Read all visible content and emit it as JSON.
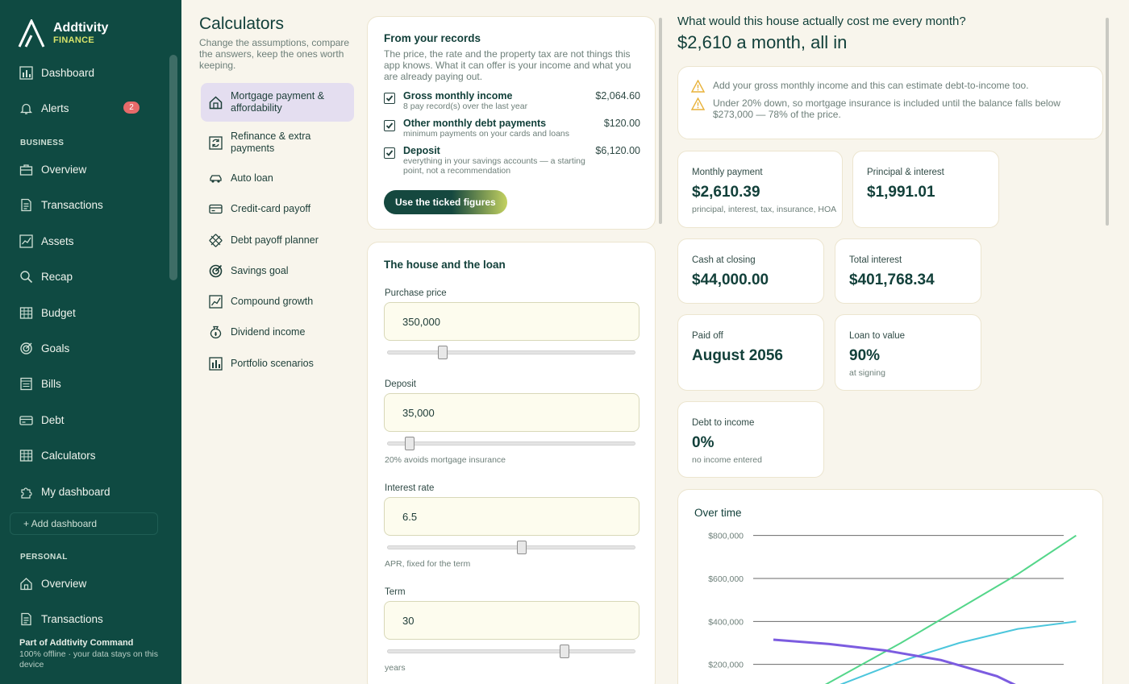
{
  "brand": {
    "name": "Addtivity",
    "sub": "FINANCE"
  },
  "nav": {
    "dashboard": "Dashboard",
    "alerts": "Alerts",
    "alerts_count": "2",
    "business_label": "BUSINESS",
    "business": [
      "Overview",
      "Transactions",
      "Assets",
      "Recap",
      "Budget",
      "Goals",
      "Bills",
      "Debt",
      "Calculators",
      "My dashboard"
    ],
    "add_dashboard": "+ Add dashboard",
    "personal_label": "PERSONAL",
    "personal": [
      "Overview",
      "Transactions"
    ],
    "footer_title": "Part of Addtivity Command",
    "footer_sub": "100% offline · your data stays on this device"
  },
  "calculators": {
    "title": "Calculators",
    "desc": "Change the assumptions, compare the answers, keep the ones worth keeping.",
    "items": [
      "Mortgage payment & affordability",
      "Refinance & extra payments",
      "Auto loan",
      "Credit-card payoff",
      "Debt payoff planner",
      "Savings goal",
      "Compound growth",
      "Dividend income",
      "Portfolio scenarios"
    ],
    "active_index": 0
  },
  "records": {
    "title": "From your records",
    "desc": "The price, the rate and the property tax are not things this app knows. What it can offer is your income and what you are already paying out.",
    "rows": [
      {
        "label": "Gross monthly income",
        "sub": "8 pay record(s) over the last year",
        "value": "$2,064.60",
        "checked": true
      },
      {
        "label": "Other monthly debt payments",
        "sub": "minimum payments on your cards and loans",
        "value": "$120.00",
        "checked": true
      },
      {
        "label": "Deposit",
        "sub": "everything in your savings accounts — a starting point, not a recommendation",
        "value": "$6,120.00",
        "checked": true
      }
    ],
    "button": "Use the ticked figures"
  },
  "loan": {
    "title": "The house and the loan",
    "fields": [
      {
        "label": "Purchase price",
        "value": "350,000",
        "hint": "",
        "slider": 0.21
      },
      {
        "label": "Deposit",
        "value": "35,000",
        "hint": "20% avoids mortgage insurance",
        "slider": 0.07
      },
      {
        "label": "Interest rate",
        "value": "6.5",
        "hint": "APR, fixed for the term",
        "slider": 0.54
      },
      {
        "label": "Term",
        "value": "30",
        "hint": "years",
        "slider": 0.72
      }
    ]
  },
  "results": {
    "question": "What would this house actually cost me every month?",
    "answer": "$2,610 a month, all in",
    "warnings": [
      "Add your gross monthly income and this can estimate debt-to-income too.",
      "Under 20% down, so mortgage insurance is included until the balance falls below $273,000 — 78% of the price."
    ],
    "stats": {
      "monthly": {
        "label": "Monthly payment",
        "value": "$2,610.39",
        "sub": "principal, interest, tax, insurance, HOA"
      },
      "pi": {
        "label": "Principal & interest",
        "value": "$1,991.01"
      },
      "cash": {
        "label": "Cash at closing",
        "value": "$44,000.00"
      },
      "interest": {
        "label": "Total interest",
        "value": "$401,768.34"
      },
      "paid": {
        "label": "Paid off",
        "value": "August 2056"
      },
      "ltv": {
        "label": "Loan to value",
        "value": "90%",
        "sub": "at signing"
      },
      "dti": {
        "label": "Debt to income",
        "value": "0%",
        "sub": "no income entered"
      }
    }
  },
  "chart_data": {
    "type": "line",
    "title": "Over time",
    "ylim": [
      0,
      900000
    ],
    "yticks": [
      200000,
      400000,
      600000,
      800000
    ],
    "ytick_labels": [
      "$200,000",
      "$400,000",
      "$600,000",
      "$800,000"
    ],
    "x": [
      0,
      0.2,
      0.4,
      0.6,
      0.8,
      1
    ],
    "series": [
      {
        "color": "#54d68a",
        "values": [
          0,
          150000,
          300000,
          460000,
          620000,
          800000
        ]
      },
      {
        "color": "#4cc6dc",
        "values": [
          0,
          110000,
          215000,
          300000,
          365000,
          400000
        ]
      },
      {
        "color": "#7c5ce0",
        "values": [
          315000,
          295000,
          265000,
          220000,
          145000,
          20000
        ]
      }
    ],
    "grid": true,
    "legend": "none"
  },
  "colors": {
    "sidebar": "#0f4a42",
    "accent": "#c3d160",
    "warn": "#e8b23a"
  }
}
